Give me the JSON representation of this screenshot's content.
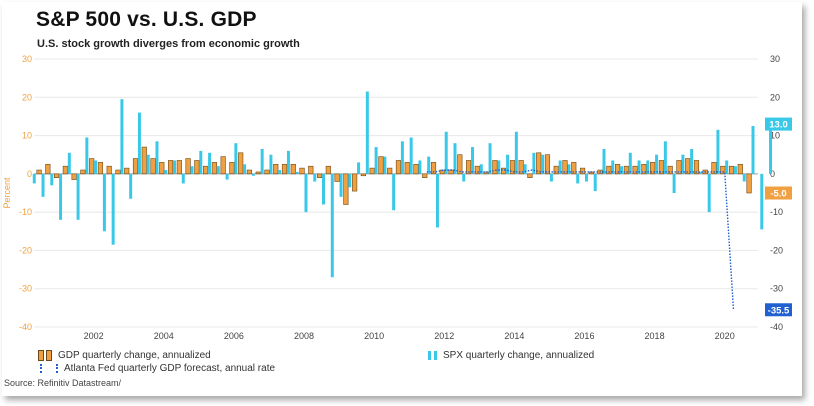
{
  "header": {
    "title": "S&P 500 vs. U.S. GDP",
    "subtitle": "U.S. stock growth diverges from economic growth"
  },
  "source": "Source: Refinitiv Datastream/",
  "legend": {
    "gdp": "GDP quarterly change, annualized",
    "spx": "SPX quarterly change, annualized",
    "atl": "Atlanta Fed quarterly GDP forecast, annual rate"
  },
  "colors": {
    "gdp": "#f0a040",
    "gdp_outline": "#6b4a1a",
    "spx": "#38c8e8",
    "atl": "#2060d0",
    "left_axis": "#f0a040",
    "right_axis": "#444444"
  },
  "callouts": {
    "spx_last": "13.0",
    "gdp_last": "-5.0",
    "atl_last": "-35.5"
  },
  "chart_data": {
    "type": "bar",
    "ylabel_left": "Percent",
    "ylim": [
      -40,
      30
    ],
    "yticks": [
      -40,
      -30,
      -20,
      -10,
      0,
      10,
      20,
      30
    ],
    "xticks": [
      "2002",
      "2004",
      "2006",
      "2008",
      "2010",
      "2012",
      "2014",
      "2016",
      "2018",
      "2020"
    ],
    "x_start": 2000.5,
    "x_step": 0.25,
    "series": [
      {
        "name": "GDP quarterly change, annualized",
        "type": "bar",
        "values": [
          1.0,
          2.5,
          -1.0,
          2.0,
          -1.5,
          1.0,
          4.0,
          3.0,
          2.0,
          1.0,
          1.5,
          4.0,
          7.0,
          4.0,
          3.0,
          3.5,
          3.5,
          4.0,
          3.5,
          2.0,
          3.0,
          4.5,
          3.0,
          5.5,
          1.0,
          0.5,
          1.0,
          2.5,
          2.5,
          2.5,
          1.5,
          2.0,
          -1.0,
          2.0,
          -2.0,
          -8.0,
          -4.5,
          -0.5,
          1.5,
          4.5,
          1.5,
          3.5,
          3.0,
          2.5,
          -1.0,
          3.0,
          1.0,
          1.0,
          5.0,
          3.5,
          2.0,
          0.5,
          3.5,
          1.5,
          3.5,
          3.5,
          -1.0,
          5.5,
          5.0,
          2.0,
          3.5,
          3.0,
          1.5,
          0.5,
          1.0,
          2.0,
          2.5,
          2.0,
          2.0,
          2.5,
          3.0,
          3.5,
          2.0,
          3.5,
          4.0,
          3.5,
          1.0,
          3.0,
          2.0,
          2.0,
          2.5,
          -5.0
        ],
        "color": "#f0a040"
      },
      {
        "name": "SPX quarterly change, annualized",
        "type": "bar",
        "values": [
          -2.5,
          -6.0,
          -3.0,
          -12.0,
          5.5,
          -12.0,
          9.5,
          3.5,
          -15.0,
          -18.5,
          19.5,
          -6.5,
          16.0,
          5.0,
          8.5,
          1.0,
          3.5,
          -2.5,
          2.0,
          6.0,
          5.5,
          2.0,
          -1.5,
          8.0,
          2.5,
          -0.5,
          6.5,
          5.0,
          1.0,
          6.0,
          0.5,
          -10.0,
          -2.0,
          -8.0,
          -27.0,
          -6.0,
          -3.5,
          3.0,
          21.5,
          7.0,
          4.5,
          -9.5,
          8.5,
          9.5,
          3.5,
          4.5,
          -14.0,
          11.0,
          8.0,
          -2.0,
          7.0,
          2.5,
          8.0,
          3.5,
          5.0,
          11.0,
          2.5,
          5.5,
          5.0,
          -2.0,
          3.5,
          2.5,
          -2.5,
          -2.0,
          -4.5,
          6.5,
          3.5,
          2.0,
          5.5,
          3.5,
          3.5,
          5.0,
          8.5,
          -5.0,
          5.0,
          6.5,
          0.5,
          -10.0,
          11.5,
          3.5,
          2.0,
          -2.0,
          12.5,
          -14.5,
          13.0
        ],
        "color": "#38c8e8"
      },
      {
        "name": "Atlanta Fed quarterly GDP forecast, annual rate",
        "type": "line",
        "x": [
          2011.5,
          2011.75,
          2012.0,
          2012.25,
          2012.5,
          2012.75,
          2013.0,
          2013.25,
          2013.5,
          2013.75,
          2014.0,
          2014.25,
          2014.5,
          2014.75,
          2015.0,
          2015.25,
          2015.5,
          2015.75,
          2016.0,
          2016.25,
          2016.5,
          2016.75,
          2017.0,
          2017.25,
          2017.5,
          2017.75,
          2018.0,
          2018.25,
          2018.5,
          2018.75,
          2019.0,
          2019.25,
          2019.5,
          2019.75,
          2020.0,
          2020.25
        ],
        "values": [
          0.5,
          0.5,
          1.0,
          1.0,
          0.5,
          0.5,
          0.5,
          0.5,
          1.0,
          1.0,
          0.5,
          0.5,
          1.0,
          0.5,
          0.5,
          0.5,
          0.5,
          0.5,
          0.5,
          0.5,
          0.5,
          0.5,
          0.5,
          0.5,
          0.5,
          0.5,
          0.5,
          0.5,
          0.5,
          0.5,
          0.5,
          0.5,
          0.5,
          0.5,
          0.5,
          -35.5
        ],
        "color": "#2060d0"
      }
    ]
  }
}
